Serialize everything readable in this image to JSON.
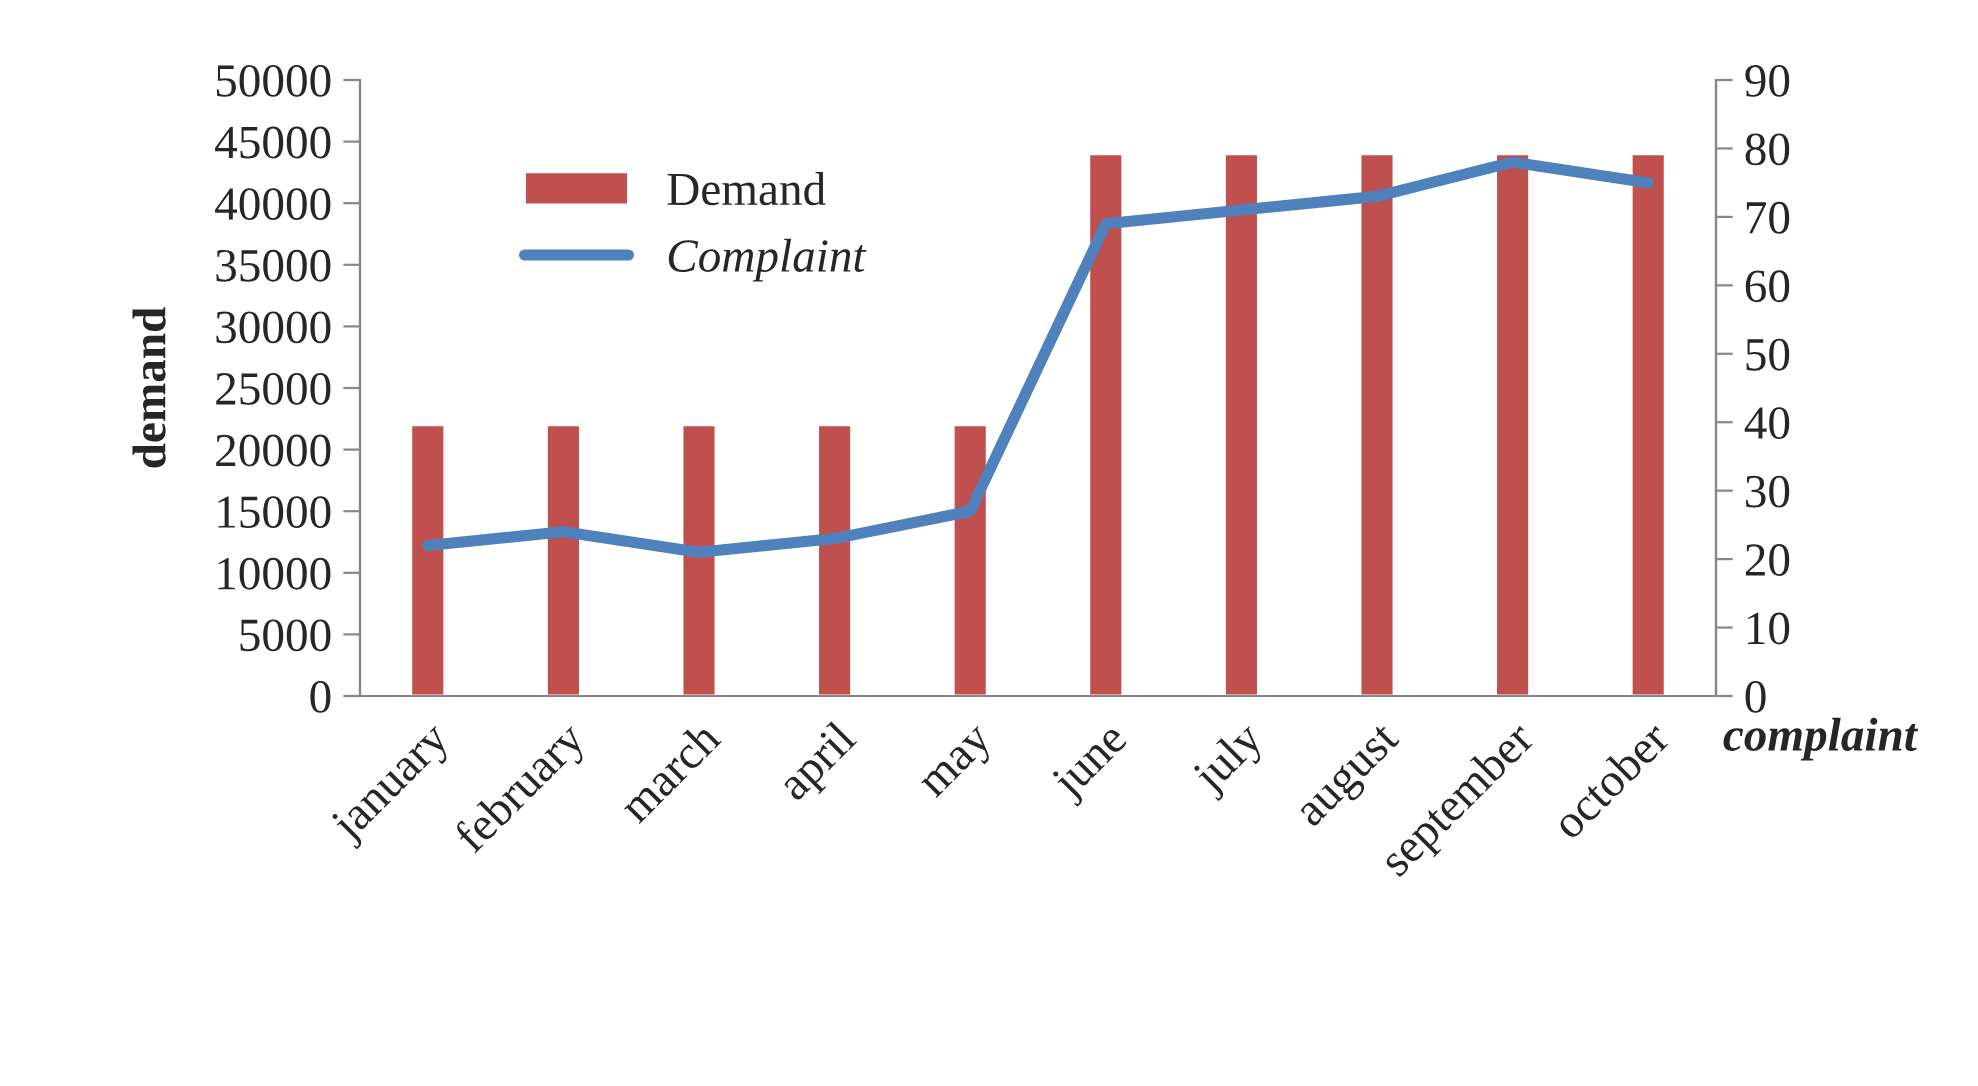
{
  "chart_data": {
    "type": "bar",
    "categories": [
      "january",
      "february",
      "march",
      "april",
      "may",
      "june",
      "july",
      "august",
      "september",
      "october"
    ],
    "ylabel": "demand",
    "y2label": "complaint",
    "ylim": [
      0,
      50000
    ],
    "yticks": [
      0,
      5000,
      10000,
      15000,
      20000,
      25000,
      30000,
      35000,
      40000,
      45000,
      50000
    ],
    "y2lim": [
      0,
      90
    ],
    "y2ticks": [
      0,
      10,
      20,
      30,
      40,
      50,
      60,
      70,
      80,
      90
    ],
    "grid": false,
    "legend": "top left",
    "series": [
      {
        "name": "Demand",
        "color": "#c0504d",
        "values": [
          22000,
          22000,
          22000,
          22000,
          22000,
          44000,
          44000,
          44000,
          44000,
          44000
        ]
      },
      {
        "name": "Complaint",
        "type": "line",
        "axis": "y2",
        "color": "#4f81bd",
        "values": [
          22,
          24,
          21,
          23,
          27,
          69,
          71,
          73,
          78,
          75
        ]
      }
    ]
  }
}
